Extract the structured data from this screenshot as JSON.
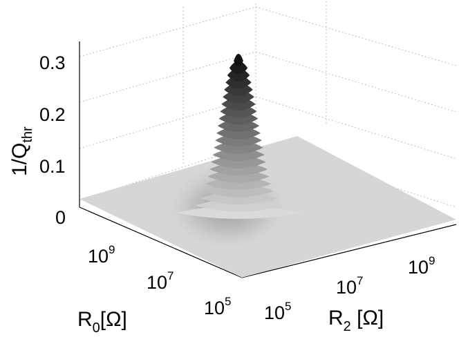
{
  "chart_data": {
    "type": "surface",
    "zlabel": {
      "main": "1/Q",
      "sub": "thr"
    },
    "ylabel": {
      "main": "R",
      "sub": "0",
      "unit": "[Ω]"
    },
    "xlabel": {
      "main": "R",
      "sub": "2",
      "unit": " [Ω]"
    },
    "z_ticks": [
      "0",
      "0.1",
      "0.2",
      "0.3"
    ],
    "z_tick_values": [
      0,
      0.1,
      0.2,
      0.3
    ],
    "zlim": [
      0,
      0.32
    ],
    "r0_ticks": [
      {
        "base": "10",
        "exp": "9"
      },
      {
        "base": "10",
        "exp": "7"
      },
      {
        "base": "10",
        "exp": "5"
      }
    ],
    "r2_ticks": [
      {
        "base": "10",
        "exp": "5"
      },
      {
        "base": "10",
        "exp": "7"
      },
      {
        "base": "10",
        "exp": "9"
      }
    ],
    "x_scale": "log",
    "y_scale": "log",
    "grid": true,
    "colormap": "gray",
    "peak": {
      "z": 0.3
    }
  }
}
